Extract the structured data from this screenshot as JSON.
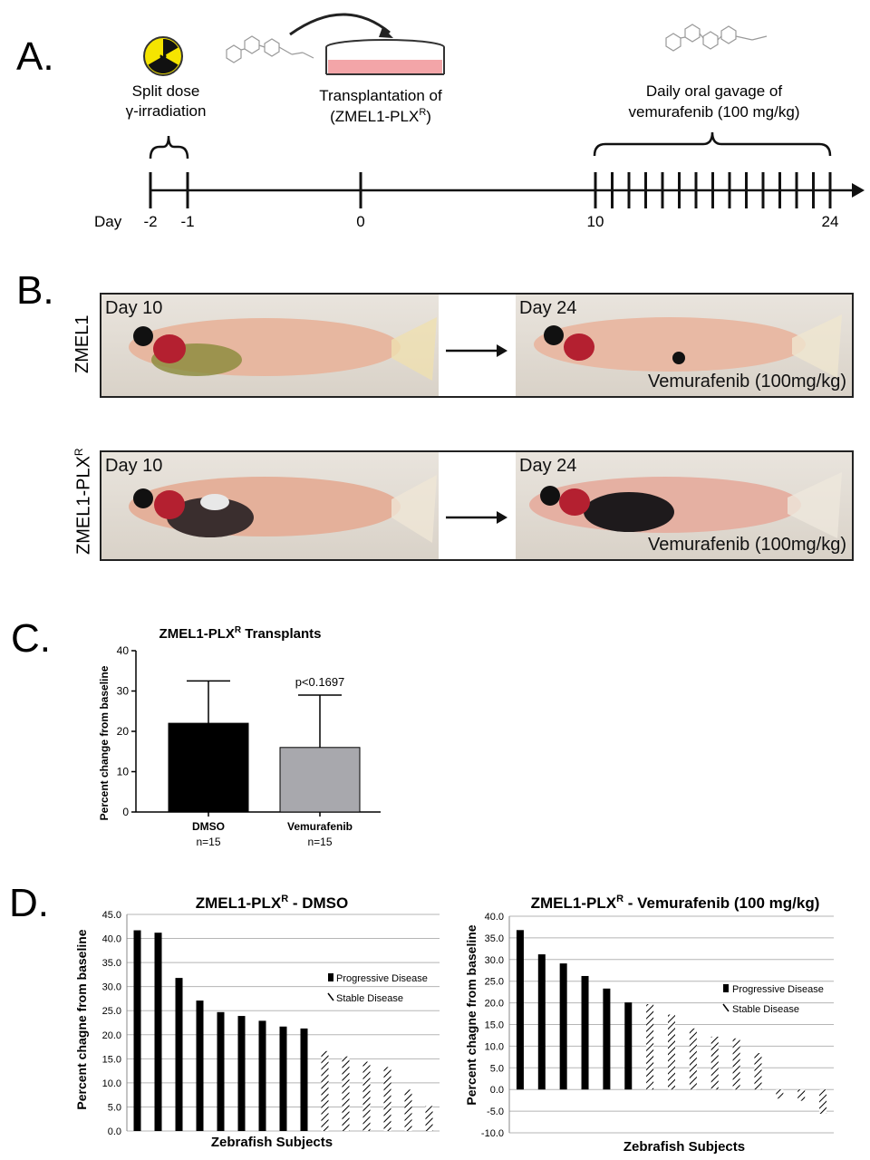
{
  "panels": {
    "a": "A.",
    "b": "B.",
    "c": "C.",
    "d": "D."
  },
  "timeline": {
    "irradiation_label_1": "Split dose",
    "irradiation_label_2": "γ-irradiation",
    "transplant_label_1": "Transplantation of",
    "transplant_label_2_pre": "(ZMEL1-PLX",
    "transplant_label_2_sup": "R",
    "transplant_label_2_post": ")",
    "gavage_label_1": "Daily oral gavage of",
    "gavage_label_2": "vemurafenib (100 mg/kg)",
    "day_word": "Day",
    "ticks": [
      "-2",
      "-1",
      "0",
      "10",
      "24"
    ]
  },
  "photos": {
    "row1_label": "ZMEL1",
    "row2_label_pre": "ZMEL1-PLX",
    "row2_label_sup": "R",
    "day_start": "Day 10",
    "day_end": "Day 24",
    "treatment": "Vemurafenib (100mg/kg)"
  },
  "chart_c": {
    "title_pre": "ZMEL1-PLX",
    "title_sup": "R",
    "title_post": " Transplants",
    "ylabel": "Percent change from baseline",
    "pvalue": "p<0.1697",
    "colors": {
      "dmso": "#000000",
      "vemurafenib": "#a8a8ad"
    },
    "chart_data": {
      "type": "bar",
      "categories": [
        "DMSO",
        "Vemurafenib"
      ],
      "n_labels": [
        "n=15",
        "n=15"
      ],
      "values": [
        22.0,
        16.0
      ],
      "error_upper": [
        32.5,
        29.0
      ],
      "yticks": [
        "0",
        "10",
        "20",
        "30",
        "40"
      ],
      "ylim": [
        0,
        40
      ]
    }
  },
  "chart_d1": {
    "title_pre": "ZMEL1-PLX",
    "title_sup": "R",
    "title_post": " - DMSO",
    "ylabel": "Percent chagne from baseline",
    "xlabel": "Zebrafish Subjects",
    "legend": [
      "Progressive Disease",
      "Stable Disease"
    ],
    "chart_data": {
      "type": "bar",
      "yticks": [
        "0.0",
        "5.0",
        "10.0",
        "15.0",
        "20.0",
        "25.0",
        "30.0",
        "35.0",
        "40.0",
        "45.0"
      ],
      "ylim": [
        0,
        45
      ],
      "progressive": [
        41.7,
        41.2,
        31.8,
        27.1,
        24.7,
        23.9,
        22.9,
        21.7,
        21.3
      ],
      "stable": [
        16.6,
        15.5,
        14.4,
        13.3,
        8.6,
        5.2
      ]
    }
  },
  "chart_d2": {
    "title_pre": "ZMEL1-PLX",
    "title_sup": "R",
    "title_post": " - Vemurafenib (100 mg/kg)",
    "ylabel": "Percent chagne from baseline",
    "xlabel": "Zebrafish Subjects",
    "legend": [
      "Progressive Disease",
      "Stable Disease"
    ],
    "chart_data": {
      "type": "bar",
      "yticks": [
        "-10.0",
        "-5.0",
        "0.0",
        "5.0",
        "10.0",
        "15.0",
        "20.0",
        "25.0",
        "30.0",
        "35.0",
        "40.0"
      ],
      "ylim": [
        -10,
        40
      ],
      "progressive": [
        36.8,
        31.2,
        29.1,
        26.2,
        23.3,
        20.1
      ],
      "stable": [
        19.7,
        17.3,
        14.1,
        12.2,
        11.8,
        8.4,
        -2.1,
        -2.6,
        -5.6
      ]
    }
  }
}
